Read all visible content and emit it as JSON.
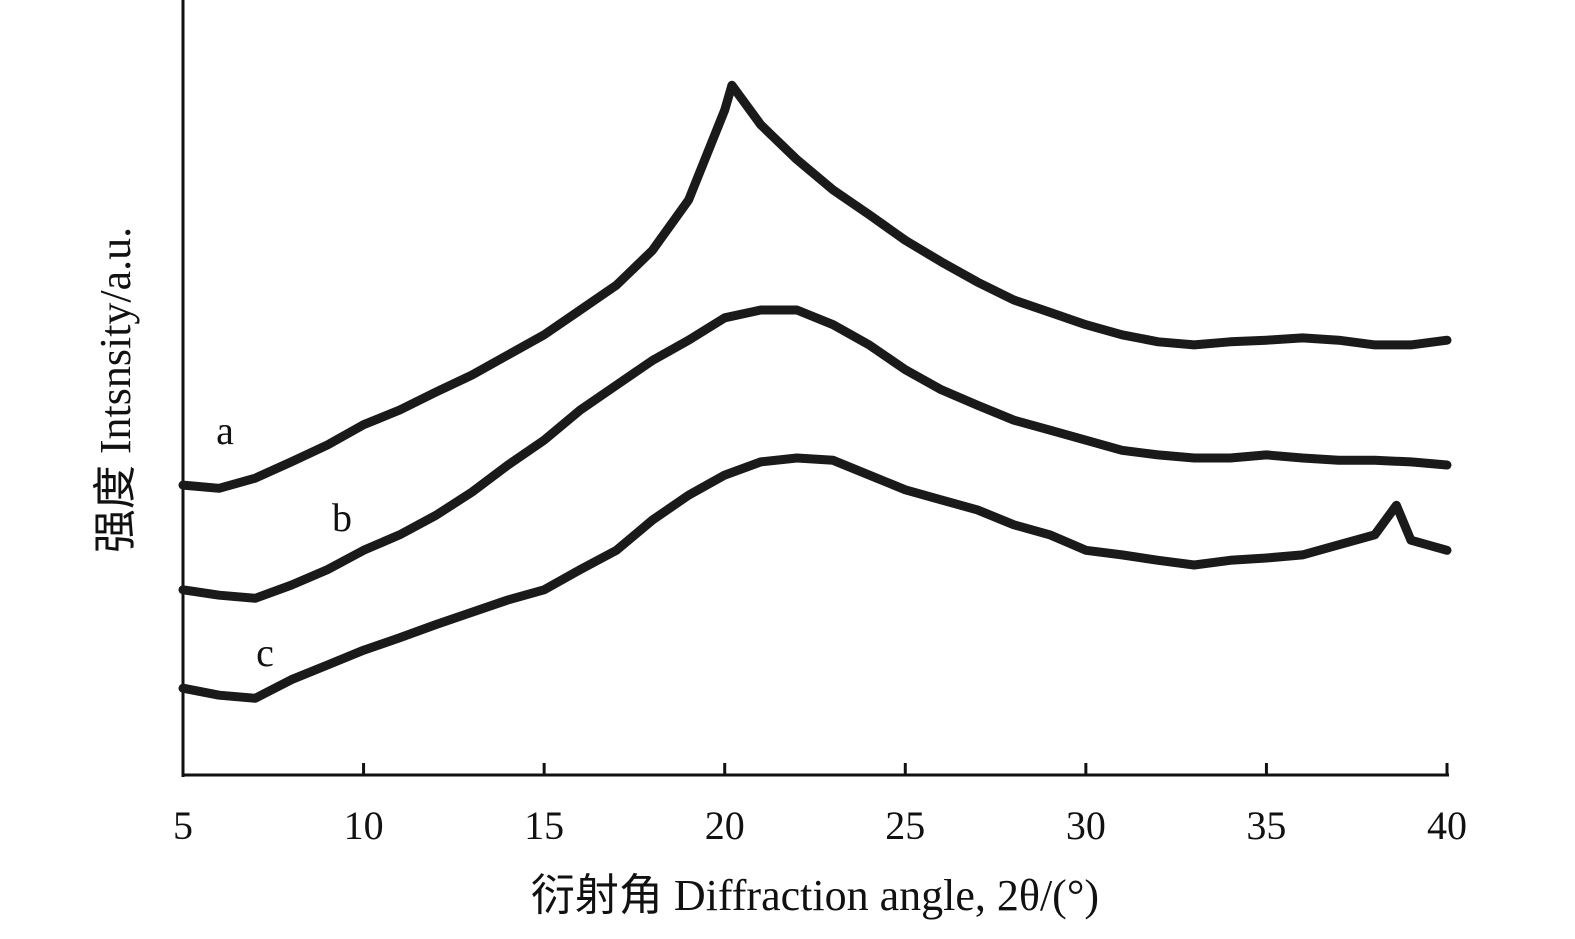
{
  "chart_data": {
    "type": "line",
    "xlabel": "衍射角 Diffraction angle, 2θ/(°)",
    "ylabel": "强度 Intsnsity/a.u.",
    "xlim": [
      5,
      40
    ],
    "xticks": [
      5,
      10,
      15,
      20,
      25,
      30,
      35,
      40
    ],
    "ylim": [
      0,
      100
    ],
    "series": [
      {
        "name": "a",
        "color": "#1a1a1a",
        "x": [
          5,
          6,
          7,
          8,
          9,
          10,
          11,
          12,
          13,
          14,
          15,
          16,
          17,
          18,
          19,
          20,
          20.2,
          21,
          22,
          23,
          24,
          25,
          26,
          27,
          28,
          29,
          30,
          31,
          32,
          33,
          34,
          35,
          36,
          37,
          38,
          39,
          40
        ],
        "values": [
          37.4,
          37.0,
          38.3,
          40.4,
          42.6,
          45.2,
          47.1,
          49.4,
          51.6,
          54.2,
          56.8,
          60.0,
          63.2,
          67.7,
          74.2,
          85.8,
          89.0,
          83.9,
          79.4,
          75.5,
          72.3,
          69.0,
          66.2,
          63.6,
          61.3,
          59.7,
          58.1,
          56.8,
          55.9,
          55.5,
          55.9,
          56.1,
          56.4,
          56.1,
          55.5,
          55.5,
          56.1
        ]
      },
      {
        "name": "b",
        "color": "#1a1a1a",
        "x": [
          5,
          6,
          7,
          8,
          9,
          10,
          11,
          12,
          13,
          14,
          15,
          16,
          17,
          18,
          19,
          20,
          21,
          22,
          23,
          24,
          25,
          26,
          27,
          28,
          29,
          30,
          31,
          32,
          33,
          34,
          35,
          36,
          37,
          38,
          39,
          40
        ],
        "values": [
          23.9,
          23.2,
          22.8,
          24.5,
          26.5,
          29.0,
          31.0,
          33.5,
          36.5,
          40.0,
          43.2,
          47.1,
          50.3,
          53.5,
          56.1,
          59.0,
          60.0,
          60.0,
          58.1,
          55.5,
          52.3,
          49.7,
          47.7,
          45.8,
          44.5,
          43.2,
          41.9,
          41.3,
          40.9,
          40.9,
          41.3,
          40.9,
          40.6,
          40.6,
          40.4,
          40.0
        ]
      },
      {
        "name": "c",
        "color": "#1a1a1a",
        "x": [
          5,
          6,
          7,
          8,
          9,
          10,
          11,
          12,
          13,
          14,
          15,
          16,
          17,
          18,
          19,
          20,
          21,
          22,
          23,
          24,
          25,
          26,
          27,
          28,
          29,
          30,
          31,
          32,
          33,
          34,
          35,
          36,
          37,
          38,
          38.6,
          39,
          40
        ],
        "values": [
          11.2,
          10.3,
          9.9,
          12.3,
          14.2,
          16.1,
          17.7,
          19.4,
          21.0,
          22.6,
          23.9,
          26.5,
          29.0,
          32.9,
          36.1,
          38.7,
          40.4,
          40.9,
          40.6,
          38.7,
          36.8,
          35.5,
          34.2,
          32.3,
          31.0,
          29.0,
          28.4,
          27.7,
          27.1,
          27.7,
          28.0,
          28.4,
          29.7,
          31.0,
          34.8,
          30.3,
          29.0
        ]
      }
    ]
  }
}
